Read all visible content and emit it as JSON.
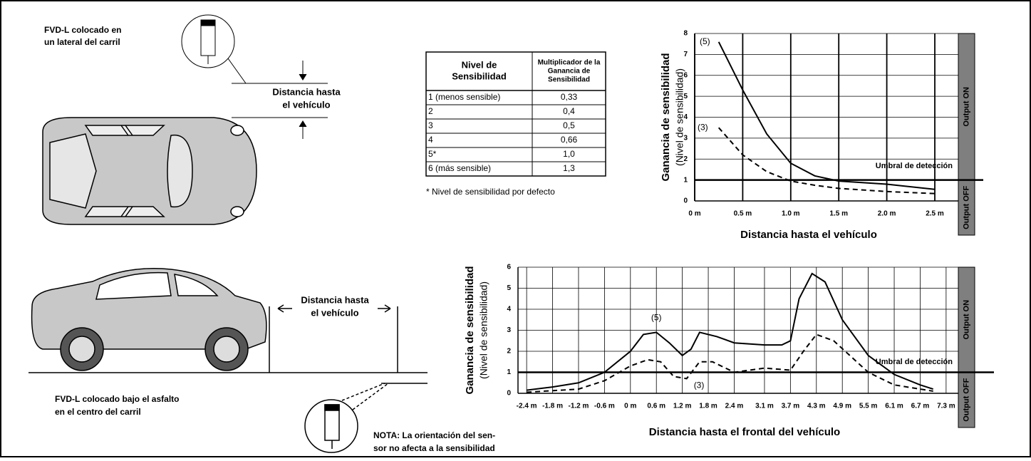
{
  "side_view": {
    "label": [
      "FVD-L colocado en",
      "un lateral del carril"
    ],
    "distance": [
      "Distancia hasta",
      "el vehículo"
    ]
  },
  "road_view": {
    "label": [
      "FVD-L colocado bajo el asfalto",
      "en el centro del carril"
    ],
    "distance": [
      "Distancia hasta",
      "el vehículo"
    ],
    "note": [
      "NOTA: La orientación del sen-",
      "sor no afecta a la sensibilidad"
    ]
  },
  "table": {
    "headers": [
      [
        "Nivel de",
        "Sensibilidad"
      ],
      [
        "Multiplicador de la",
        "Ganancia de",
        "Sensibilidad"
      ]
    ],
    "rows": [
      [
        "1 (menos sensible)",
        "0,33"
      ],
      [
        "2",
        "0,4"
      ],
      [
        "3",
        "0,5"
      ],
      [
        "4",
        "0,66"
      ],
      [
        "5*",
        "1,0"
      ],
      [
        "6 (más sensible)",
        "1,3"
      ]
    ],
    "footnote": "* Nivel de sensibilidad por defecto"
  },
  "chart_data": [
    {
      "type": "line",
      "x_label": "Distancia hasta el vehículo",
      "y_label": [
        "Ganancia de sensibilidad",
        "(Nivel de sensibilidad)"
      ],
      "threshold": 1,
      "threshold_label": "Umbral de detección",
      "output_labels": [
        "Output ON",
        "Output OFF"
      ],
      "xlim": [
        0,
        2.5
      ],
      "ylim": [
        0,
        8
      ],
      "xticks": [
        {
          "value": 0,
          "label": "0 m"
        },
        {
          "value": 0.5,
          "label": "0.5 m"
        },
        {
          "value": 1,
          "label": "1.0 m"
        },
        {
          "value": 1.5,
          "label": "1.5 m"
        },
        {
          "value": 2,
          "label": "2.0 m"
        },
        {
          "value": 2.5,
          "label": "2.5 m"
        }
      ],
      "yticks": [
        0,
        1,
        2,
        3,
        4,
        5,
        6,
        7,
        8
      ],
      "grid": true,
      "series": [
        {
          "name": "(5)",
          "color": "#000000",
          "style": "solid",
          "x": [
            0.25,
            0.5,
            0.75,
            1.0,
            1.25,
            1.5,
            2.0,
            2.5
          ],
          "values": [
            7.6,
            5.3,
            3.2,
            1.8,
            1.2,
            0.95,
            0.8,
            0.55
          ]
        },
        {
          "name": "(3)",
          "color": "#000000",
          "style": "dashed",
          "x": [
            0.25,
            0.5,
            0.75,
            1.0,
            1.25,
            1.5,
            2.0,
            2.5
          ],
          "values": [
            3.5,
            2.2,
            1.4,
            0.95,
            0.75,
            0.6,
            0.45,
            0.35
          ]
        }
      ]
    },
    {
      "type": "line",
      "x_label": "Distancia hasta el frontal del vehículo",
      "y_label": [
        "Ganancia de sensibilidad",
        "(Nivel de sensibilidad)"
      ],
      "threshold": 1,
      "threshold_label": "Umbral de detección",
      "output_labels": [
        "Output ON",
        "Output OFF"
      ],
      "xlim": [
        -2.6,
        7.5
      ],
      "ylim": [
        0,
        6
      ],
      "xticks": [
        {
          "value": -2.4,
          "label": "-2.4 m"
        },
        {
          "value": -1.8,
          "label": "-1.8 m"
        },
        {
          "value": -1.2,
          "label": "-1.2 m"
        },
        {
          "value": -0.6,
          "label": "-0.6 m"
        },
        {
          "value": 0,
          "label": "0 m"
        },
        {
          "value": 0.6,
          "label": "0.6 m"
        },
        {
          "value": 1.2,
          "label": "1.2 m"
        },
        {
          "value": 1.8,
          "label": "1.8 m"
        },
        {
          "value": 2.4,
          "label": "2.4 m"
        },
        {
          "value": 3.1,
          "label": "3.1 m"
        },
        {
          "value": 3.7,
          "label": "3.7 m"
        },
        {
          "value": 4.3,
          "label": "4.3 m"
        },
        {
          "value": 4.9,
          "label": "4.9 m"
        },
        {
          "value": 5.5,
          "label": "5.5 m"
        },
        {
          "value": 6.1,
          "label": "6.1 m"
        },
        {
          "value": 6.7,
          "label": "6.7 m"
        },
        {
          "value": 7.3,
          "label": "7.3 m"
        }
      ],
      "yticks": [
        0,
        1,
        2,
        3,
        4,
        5,
        6
      ],
      "grid": true,
      "series": [
        {
          "name": "(5)",
          "color": "#000000",
          "style": "solid",
          "x": [
            -2.4,
            -1.8,
            -1.2,
            -0.6,
            0,
            0.3,
            0.6,
            0.9,
            1.2,
            1.4,
            1.6,
            2.0,
            2.4,
            3.1,
            3.5,
            3.7,
            3.9,
            4.2,
            4.5,
            4.9,
            5.5,
            6.1,
            6.7,
            7.0
          ],
          "values": [
            0.15,
            0.3,
            0.5,
            1.0,
            2.0,
            2.8,
            2.9,
            2.4,
            1.8,
            2.1,
            2.9,
            2.7,
            2.4,
            2.3,
            2.3,
            2.5,
            4.5,
            5.7,
            5.3,
            3.5,
            1.8,
            0.9,
            0.4,
            0.2
          ]
        },
        {
          "name": "(3)",
          "color": "#000000",
          "style": "dashed",
          "x": [
            -2.4,
            -1.2,
            -0.6,
            0,
            0.4,
            0.7,
            1.0,
            1.3,
            1.6,
            1.9,
            2.4,
            3.1,
            3.7,
            4.0,
            4.3,
            4.7,
            5.5,
            6.1,
            7.0
          ],
          "values": [
            0.05,
            0.2,
            0.6,
            1.3,
            1.6,
            1.5,
            0.8,
            0.7,
            1.5,
            1.5,
            1.0,
            1.2,
            1.1,
            2.0,
            2.8,
            2.5,
            1.0,
            0.4,
            0.1
          ]
        }
      ]
    }
  ]
}
